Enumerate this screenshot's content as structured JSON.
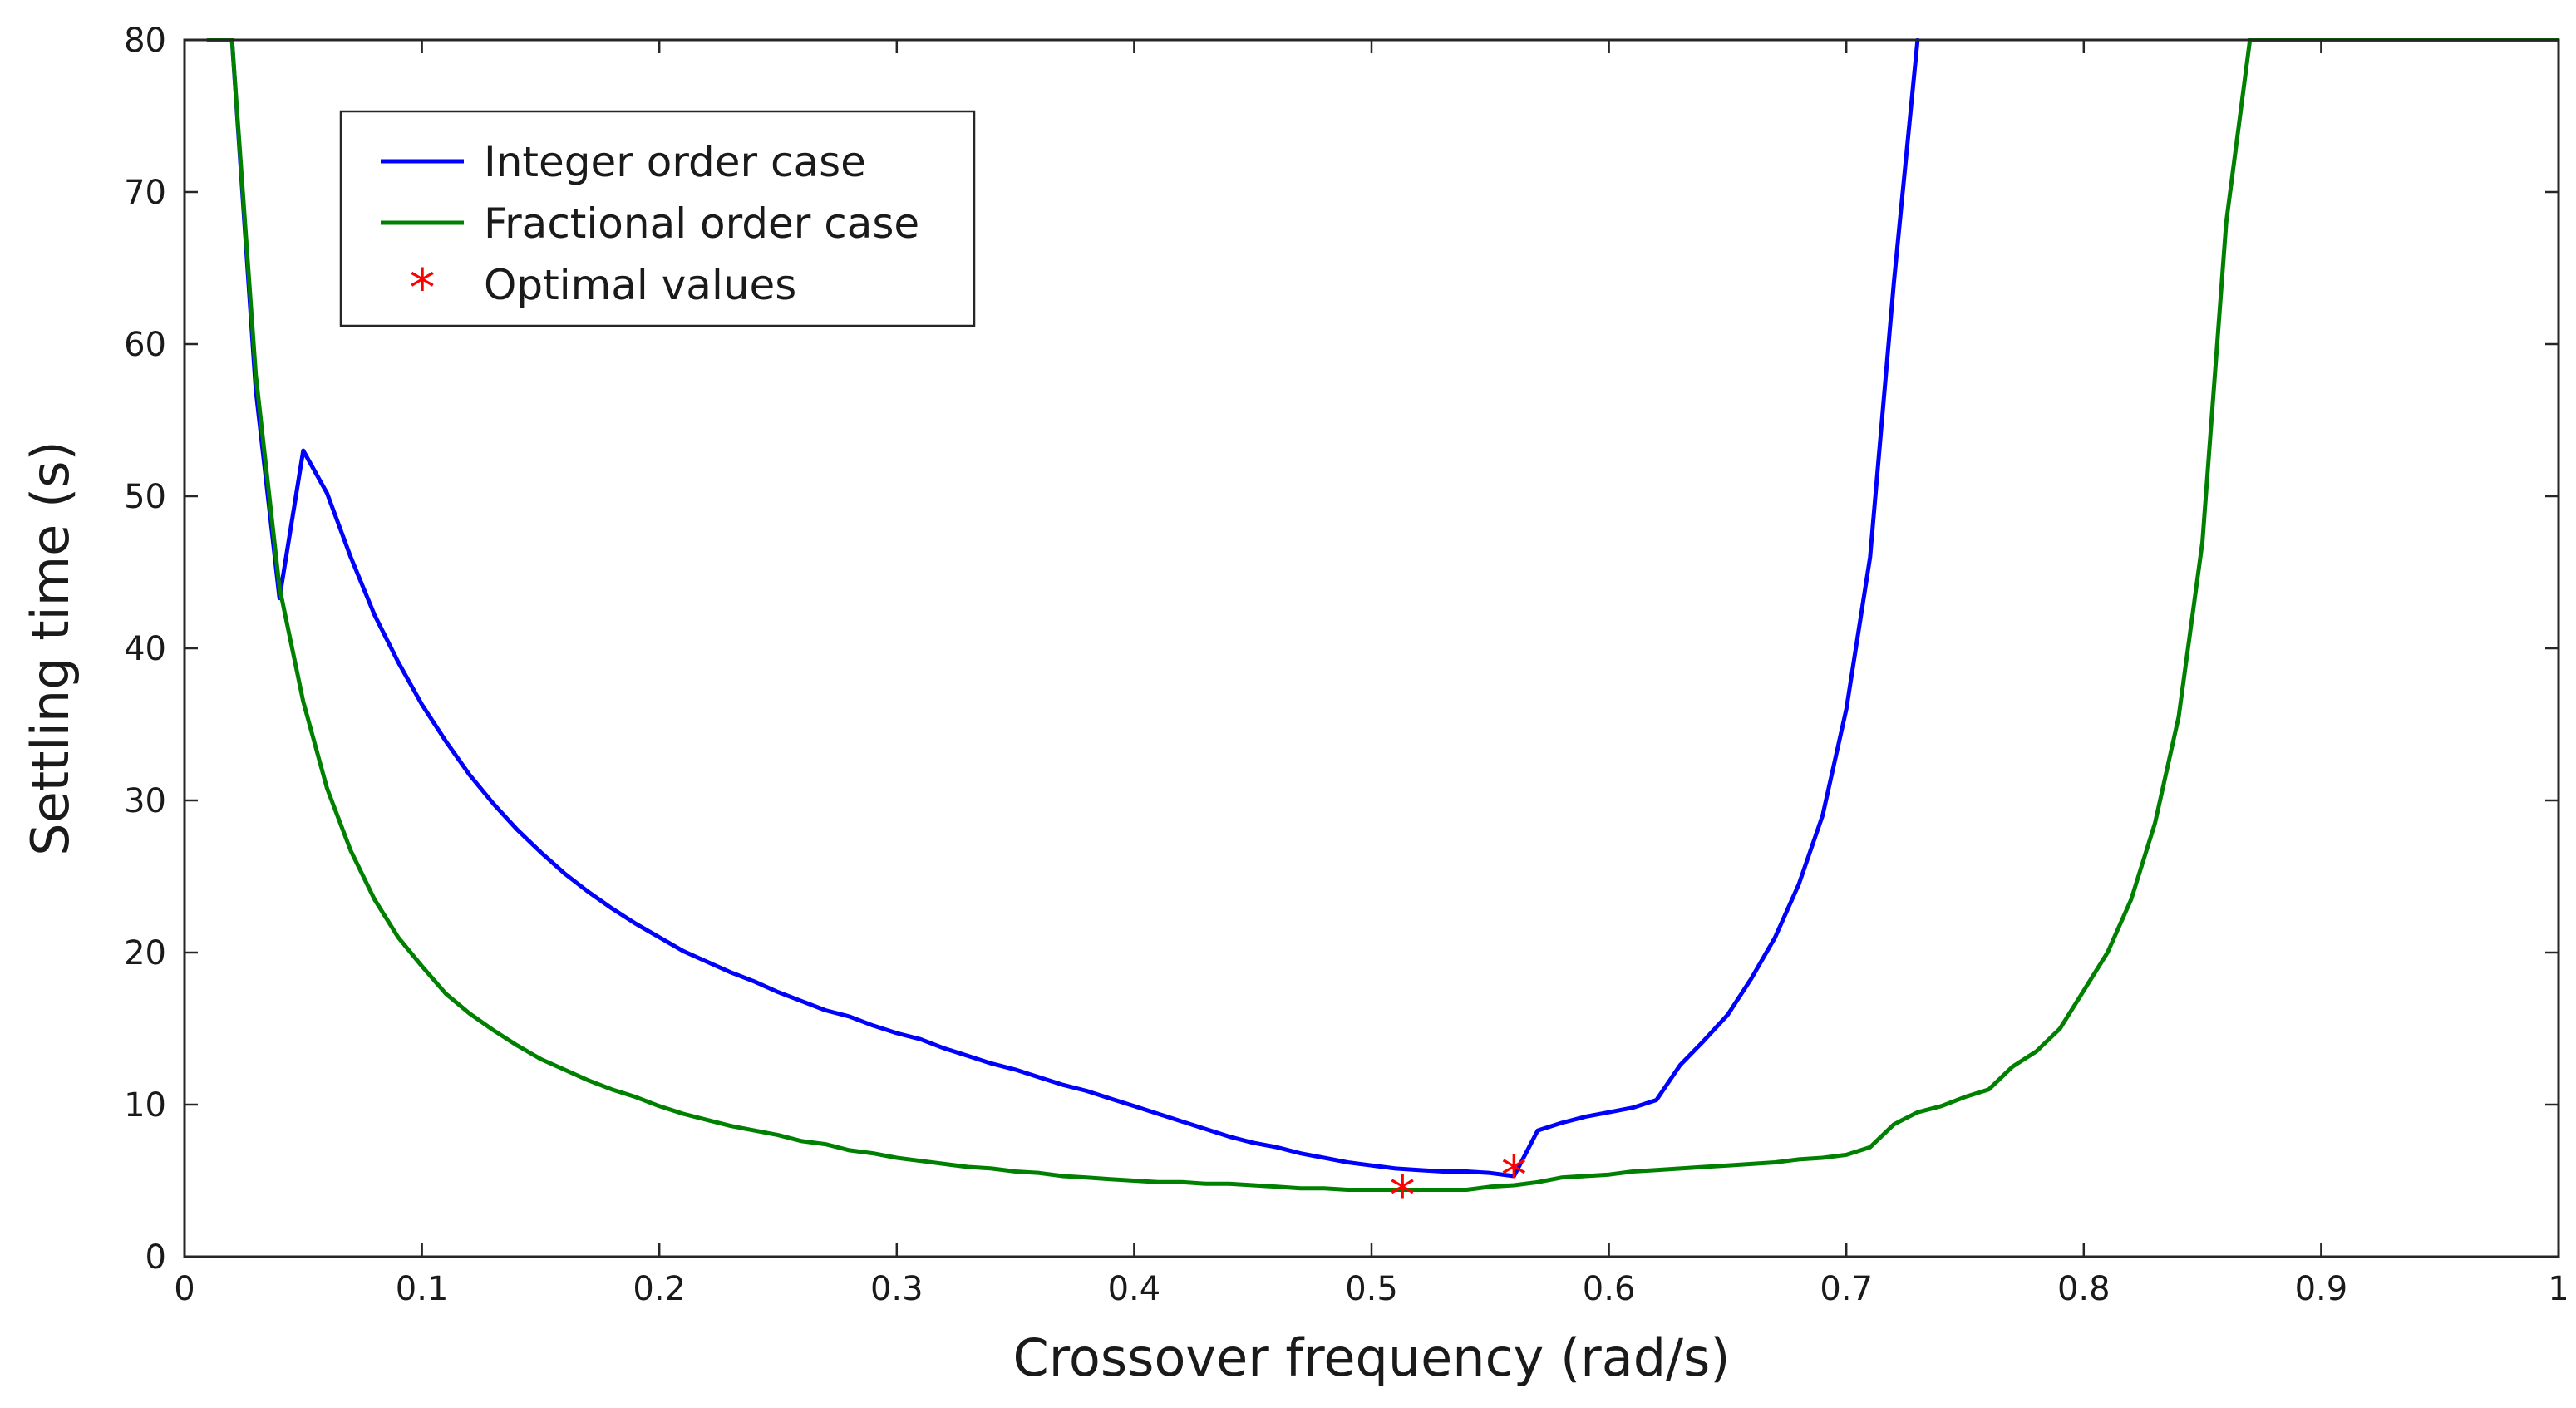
{
  "chart_data": {
    "type": "line",
    "title": "",
    "xlabel": "Crossover frequency (rad/s)",
    "ylabel": "Settling time (s)",
    "xlim": [
      0,
      1
    ],
    "ylim": [
      0,
      80
    ],
    "grid": false,
    "legend_position": "top-left",
    "x_ticks": [
      {
        "value": 0,
        "label": "0"
      },
      {
        "value": 0.1,
        "label": "0.1"
      },
      {
        "value": 0.2,
        "label": "0.2"
      },
      {
        "value": 0.3,
        "label": "0.3"
      },
      {
        "value": 0.4,
        "label": "0.4"
      },
      {
        "value": 0.5,
        "label": "0.5"
      },
      {
        "value": 0.6,
        "label": "0.6"
      },
      {
        "value": 0.7,
        "label": "0.7"
      },
      {
        "value": 0.8,
        "label": "0.8"
      },
      {
        "value": 0.9,
        "label": "0.9"
      },
      {
        "value": 1,
        "label": "1"
      }
    ],
    "y_ticks": [
      {
        "value": 0,
        "label": "0"
      },
      {
        "value": 10,
        "label": "10"
      },
      {
        "value": 20,
        "label": "20"
      },
      {
        "value": 30,
        "label": "30"
      },
      {
        "value": 40,
        "label": "40"
      },
      {
        "value": 50,
        "label": "50"
      },
      {
        "value": 60,
        "label": "60"
      },
      {
        "value": 70,
        "label": "70"
      },
      {
        "value": 80,
        "label": "80"
      }
    ],
    "series": [
      {
        "name": "Integer order case",
        "color": "#0000ff",
        "style": "line",
        "x": [
          0.01,
          0.02,
          0.03,
          0.04,
          0.05,
          0.06,
          0.07,
          0.08,
          0.09,
          0.1,
          0.11,
          0.12,
          0.13,
          0.14,
          0.15,
          0.16,
          0.17,
          0.18,
          0.19,
          0.2,
          0.21,
          0.22,
          0.23,
          0.24,
          0.25,
          0.26,
          0.27,
          0.28,
          0.29,
          0.3,
          0.31,
          0.32,
          0.33,
          0.34,
          0.35,
          0.36,
          0.37,
          0.38,
          0.39,
          0.4,
          0.41,
          0.42,
          0.43,
          0.44,
          0.45,
          0.46,
          0.47,
          0.48,
          0.49,
          0.5,
          0.51,
          0.52,
          0.53,
          0.54,
          0.55,
          0.56,
          0.57,
          0.58,
          0.59,
          0.6,
          0.61,
          0.62,
          0.63,
          0.64,
          0.65,
          0.66,
          0.67,
          0.68,
          0.69,
          0.7,
          0.71,
          0.72,
          0.73
        ],
        "y": [
          80,
          80,
          57,
          43.3,
          53,
          50.2,
          46,
          42.2,
          39.1,
          36.3,
          33.9,
          31.7,
          29.8,
          28.1,
          26.6,
          25.2,
          24.0,
          22.9,
          21.9,
          21.0,
          20.1,
          19.4,
          18.7,
          18.1,
          17.4,
          16.8,
          16.2,
          15.8,
          15.2,
          14.7,
          14.3,
          13.7,
          13.2,
          12.7,
          12.3,
          11.8,
          11.3,
          10.9,
          10.4,
          9.9,
          9.4,
          8.9,
          8.4,
          7.9,
          7.5,
          7.2,
          6.8,
          6.5,
          6.2,
          6.0,
          5.8,
          5.7,
          5.6,
          5.6,
          5.5,
          5.3,
          8.3,
          8.8,
          9.2,
          9.5,
          9.8,
          10.3,
          12.6,
          14.2,
          15.9,
          18.3,
          21.0,
          24.5,
          29.0,
          36.0,
          46.0,
          64.0,
          80
        ]
      },
      {
        "name": "Fractional order case",
        "color": "#008000",
        "style": "line",
        "x": [
          0.01,
          0.02,
          0.03,
          0.04,
          0.05,
          0.06,
          0.07,
          0.08,
          0.09,
          0.1,
          0.11,
          0.12,
          0.13,
          0.14,
          0.15,
          0.16,
          0.17,
          0.18,
          0.19,
          0.2,
          0.21,
          0.22,
          0.23,
          0.24,
          0.25,
          0.26,
          0.27,
          0.28,
          0.29,
          0.3,
          0.31,
          0.32,
          0.33,
          0.34,
          0.35,
          0.36,
          0.37,
          0.38,
          0.39,
          0.4,
          0.41,
          0.42,
          0.43,
          0.44,
          0.45,
          0.46,
          0.47,
          0.48,
          0.49,
          0.5,
          0.51,
          0.52,
          0.53,
          0.54,
          0.55,
          0.56,
          0.57,
          0.58,
          0.59,
          0.6,
          0.61,
          0.62,
          0.63,
          0.64,
          0.65,
          0.66,
          0.67,
          0.68,
          0.69,
          0.7,
          0.71,
          0.72,
          0.73,
          0.74,
          0.75,
          0.76,
          0.77,
          0.78,
          0.79,
          0.8,
          0.81,
          0.82,
          0.83,
          0.84,
          0.85,
          0.86,
          0.87,
          0.88,
          0.89,
          0.9,
          0.91,
          0.92,
          0.93,
          0.94,
          0.95,
          0.96,
          0.97,
          0.98,
          0.99,
          1.0
        ],
        "y": [
          80,
          80,
          58,
          44,
          36.5,
          30.8,
          26.7,
          23.5,
          21.0,
          19.1,
          17.3,
          16.0,
          14.9,
          13.9,
          13.0,
          12.3,
          11.6,
          11.0,
          10.5,
          9.9,
          9.4,
          9.0,
          8.6,
          8.3,
          8.0,
          7.6,
          7.4,
          7.0,
          6.8,
          6.5,
          6.3,
          6.1,
          5.9,
          5.8,
          5.6,
          5.5,
          5.3,
          5.2,
          5.1,
          5.0,
          4.9,
          4.9,
          4.8,
          4.8,
          4.7,
          4.6,
          4.5,
          4.5,
          4.4,
          4.4,
          4.4,
          4.4,
          4.4,
          4.4,
          4.6,
          4.7,
          4.9,
          5.2,
          5.3,
          5.4,
          5.6,
          5.7,
          5.8,
          5.9,
          6.0,
          6.1,
          6.2,
          6.4,
          6.5,
          6.7,
          7.2,
          8.7,
          9.5,
          9.9,
          10.5,
          11.0,
          12.5,
          13.5,
          15.0,
          17.5,
          20.0,
          23.5,
          28.5,
          35.5,
          47.0,
          68.0,
          80,
          80,
          80,
          80,
          80,
          80,
          80,
          80,
          80,
          80,
          80,
          80,
          80,
          80
        ]
      },
      {
        "name": "Optimal values",
        "color": "#ff0000",
        "style": "marker",
        "marker": "*",
        "x": [
          0.513,
          0.56
        ],
        "y": [
          4.3,
          5.6
        ]
      }
    ]
  }
}
